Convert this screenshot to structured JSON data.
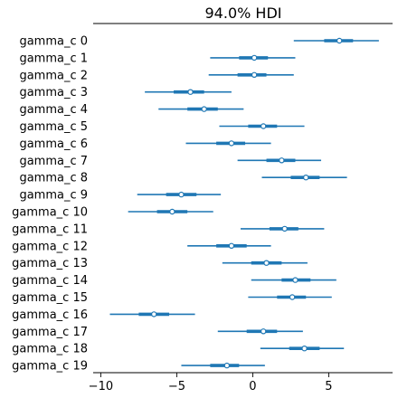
{
  "chart_data": {
    "type": "forest",
    "title": "94.0% HDI",
    "xlabel": "",
    "ylabel": "",
    "xlim": [
      -10.5,
      9.2
    ],
    "xticks": [
      -10,
      -5,
      0,
      5
    ],
    "tick_labels": [
      "−10",
      "−5",
      "0",
      "5"
    ],
    "series_color": "#1f77b4",
    "rows": [
      {
        "label": "gamma_c 0",
        "hdi": [
          2.7,
          8.3
        ],
        "iqr": [
          4.7,
          6.6
        ],
        "mean": 5.7
      },
      {
        "label": "gamma_c 1",
        "hdi": [
          -2.8,
          2.8
        ],
        "iqr": [
          -0.9,
          1.0
        ],
        "mean": 0.1
      },
      {
        "label": "gamma_c 2",
        "hdi": [
          -2.9,
          2.7
        ],
        "iqr": [
          -1.0,
          0.9
        ],
        "mean": 0.1
      },
      {
        "label": "gamma_c 3",
        "hdi": [
          -7.1,
          -1.4
        ],
        "iqr": [
          -5.2,
          -3.2
        ],
        "mean": -4.1
      },
      {
        "label": "gamma_c 4",
        "hdi": [
          -6.2,
          -0.6
        ],
        "iqr": [
          -4.3,
          -2.3
        ],
        "mean": -3.2
      },
      {
        "label": "gamma_c 5",
        "hdi": [
          -2.2,
          3.4
        ],
        "iqr": [
          -0.3,
          1.6
        ],
        "mean": 0.7
      },
      {
        "label": "gamma_c 6",
        "hdi": [
          -4.4,
          1.2
        ],
        "iqr": [
          -2.4,
          -0.5
        ],
        "mean": -1.4
      },
      {
        "label": "gamma_c 7",
        "hdi": [
          -1.0,
          4.5
        ],
        "iqr": [
          0.9,
          2.8
        ],
        "mean": 1.9
      },
      {
        "label": "gamma_c 8",
        "hdi": [
          0.6,
          6.2
        ],
        "iqr": [
          2.5,
          4.4
        ],
        "mean": 3.5
      },
      {
        "label": "gamma_c 9",
        "hdi": [
          -7.6,
          -2.1
        ],
        "iqr": [
          -5.7,
          -3.7
        ],
        "mean": -4.7
      },
      {
        "label": "gamma_c 10",
        "hdi": [
          -8.2,
          -2.6
        ],
        "iqr": [
          -6.3,
          -4.3
        ],
        "mean": -5.3
      },
      {
        "label": "gamma_c 11",
        "hdi": [
          -0.8,
          4.7
        ],
        "iqr": [
          1.1,
          3.0
        ],
        "mean": 2.1
      },
      {
        "label": "gamma_c 12",
        "hdi": [
          -4.3,
          1.2
        ],
        "iqr": [
          -2.4,
          -0.4
        ],
        "mean": -1.4
      },
      {
        "label": "gamma_c 13",
        "hdi": [
          -2.0,
          3.6
        ],
        "iqr": [
          -0.1,
          1.9
        ],
        "mean": 0.9
      },
      {
        "label": "gamma_c 14",
        "hdi": [
          -0.1,
          5.5
        ],
        "iqr": [
          1.9,
          3.8
        ],
        "mean": 2.8
      },
      {
        "label": "gamma_c 15",
        "hdi": [
          -0.3,
          5.2
        ],
        "iqr": [
          1.6,
          3.5
        ],
        "mean": 2.6
      },
      {
        "label": "gamma_c 16",
        "hdi": [
          -9.4,
          -3.8
        ],
        "iqr": [
          -7.5,
          -5.5
        ],
        "mean": -6.5
      },
      {
        "label": "gamma_c 17",
        "hdi": [
          -2.3,
          3.3
        ],
        "iqr": [
          -0.4,
          1.6
        ],
        "mean": 0.7
      },
      {
        "label": "gamma_c 18",
        "hdi": [
          0.5,
          6.0
        ],
        "iqr": [
          2.4,
          4.4
        ],
        "mean": 3.4
      },
      {
        "label": "gamma_c 19",
        "hdi": [
          -4.7,
          0.8
        ],
        "iqr": [
          -2.8,
          -0.9
        ],
        "mean": -1.7
      }
    ]
  }
}
